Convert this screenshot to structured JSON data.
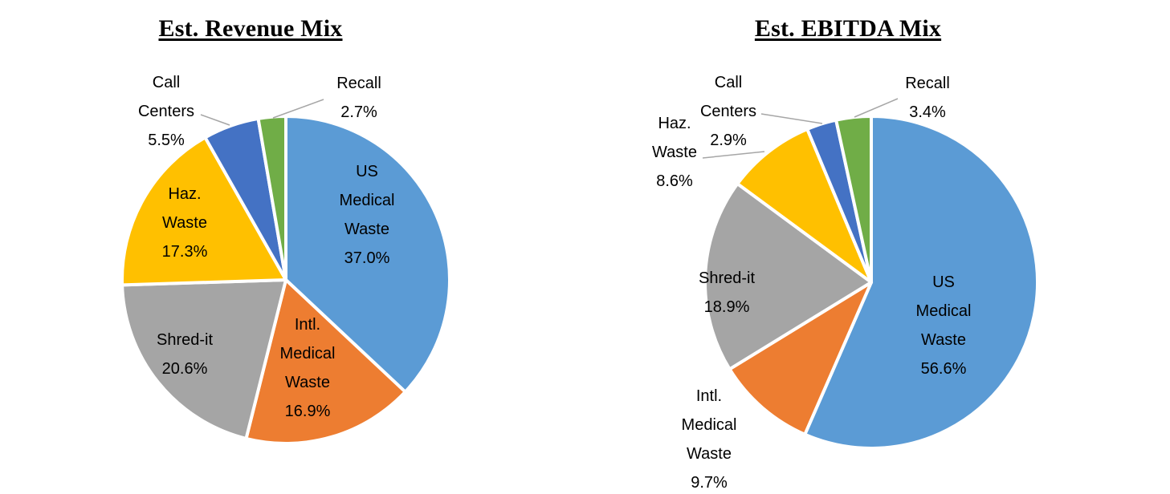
{
  "style": {
    "background": "#FFFFFF",
    "slice_border_color": "#FFFFFF",
    "leader_line_color": "#A6A6A6",
    "label_color": "#000000",
    "title_color": "#000000"
  },
  "chart_data": [
    {
      "type": "pie",
      "title": "Est. Revenue Mix",
      "value_unit": "%",
      "start_angle": "top",
      "direction": "clockwise",
      "legend": "none",
      "slices": [
        {
          "label": "US Medical Waste",
          "value": 37.0,
          "display": "37.0%",
          "lines": [
            "US",
            "Medical",
            "Waste",
            "37.0%"
          ],
          "color": "#5B9BD5",
          "label_placement": "inside"
        },
        {
          "label": "Intl. Medical Waste",
          "value": 16.9,
          "display": "16.9%",
          "lines": [
            "Intl.",
            "Medical",
            "Waste",
            "16.9%"
          ],
          "color": "#ED7D31",
          "label_placement": "inside"
        },
        {
          "label": "Shred-it",
          "value": 20.6,
          "display": "20.6%",
          "lines": [
            "Shred-it",
            "20.6%"
          ],
          "color": "#A5A5A5",
          "label_placement": "inside"
        },
        {
          "label": "Haz. Waste",
          "value": 17.3,
          "display": "17.3%",
          "lines": [
            "Haz.",
            "Waste",
            "17.3%"
          ],
          "color": "#FFC000",
          "label_placement": "inside"
        },
        {
          "label": "Call Centers",
          "value": 5.5,
          "display": "5.5%",
          "lines": [
            "Call",
            "Centers",
            "5.5%"
          ],
          "color": "#4472C4",
          "label_placement": "outside"
        },
        {
          "label": "Recall",
          "value": 2.7,
          "display": "2.7%",
          "lines": [
            "Recall",
            "2.7%"
          ],
          "color": "#70AD47",
          "label_placement": "outside"
        }
      ]
    },
    {
      "type": "pie",
      "title": "Est. EBITDA Mix",
      "value_unit": "%",
      "start_angle": "top",
      "direction": "clockwise",
      "legend": "none",
      "slices": [
        {
          "label": "US Medical Waste",
          "value": 56.6,
          "display": "56.6%",
          "lines": [
            "US",
            "Medical",
            "Waste",
            "56.6%"
          ],
          "color": "#5B9BD5",
          "label_placement": "inside"
        },
        {
          "label": "Intl. Medical Waste",
          "value": 9.7,
          "display": "9.7%",
          "lines": [
            "Intl.",
            "Medical",
            "Waste",
            "9.7%"
          ],
          "color": "#ED7D31",
          "label_placement": "outside"
        },
        {
          "label": "Shred-it",
          "value": 18.9,
          "display": "18.9%",
          "lines": [
            "Shred-it",
            "18.9%"
          ],
          "color": "#A5A5A5",
          "label_placement": "inside"
        },
        {
          "label": "Haz. Waste",
          "value": 8.6,
          "display": "8.6%",
          "lines": [
            "Haz.",
            "Waste",
            "8.6%"
          ],
          "color": "#FFC000",
          "label_placement": "outside"
        },
        {
          "label": "Call Centers",
          "value": 2.9,
          "display": "2.9%",
          "lines": [
            "Call",
            "Centers",
            "2.9%"
          ],
          "color": "#4472C4",
          "label_placement": "outside"
        },
        {
          "label": "Recall",
          "value": 3.4,
          "display": "3.4%",
          "lines": [
            "Recall",
            "3.4%"
          ],
          "color": "#70AD47",
          "label_placement": "outside"
        }
      ]
    }
  ]
}
